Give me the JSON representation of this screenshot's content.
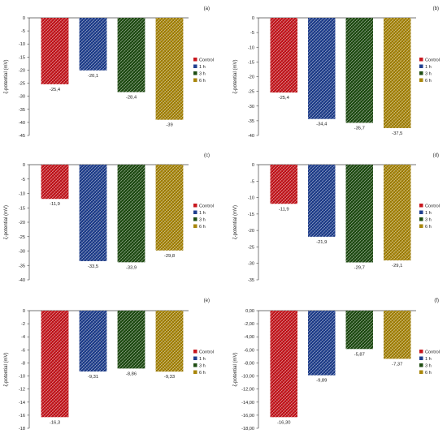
{
  "colors": {
    "Control": "#c8161d",
    "1 h": "#1f3f8f",
    "3 h": "#1e4d12",
    "6 h": "#a8860a"
  },
  "chart_data": [
    {
      "panel": "(a)",
      "type": "bar",
      "ylabel": "ζ-potential (mV)",
      "categories": [
        "Control",
        "1 h",
        "3 h",
        "6 h"
      ],
      "values": [
        -25.4,
        -20.1,
        -28.4,
        -39
      ],
      "value_labels": [
        "-25,4",
        "-20,1",
        "-28,4",
        "-39"
      ],
      "ylim": [
        -45,
        0
      ],
      "yticks": [
        0,
        -5,
        -10,
        -15,
        -20,
        -25,
        -30,
        -35,
        -40,
        -45
      ],
      "ytick_labels": [
        "0",
        "-5",
        "-10",
        "-15",
        "-20",
        "-25",
        "-30",
        "-35",
        "-40",
        "-45"
      ],
      "legend": [
        "Control",
        "1 h",
        "3 h",
        "6 h"
      ],
      "legend_position": "right"
    },
    {
      "panel": "(b)",
      "type": "bar",
      "ylabel": "ζ-potential (mV)",
      "categories": [
        "Control",
        "1 h",
        "3 h",
        "6 h"
      ],
      "values": [
        -25.4,
        -34.4,
        -35.7,
        -37.5
      ],
      "value_labels": [
        "-25,4",
        "-34,4",
        "-35,7",
        "-37,5"
      ],
      "ylim": [
        -40,
        0
      ],
      "yticks": [
        0,
        -5,
        -10,
        -15,
        -20,
        -25,
        -30,
        -35,
        -40
      ],
      "ytick_labels": [
        "0",
        "-5",
        "-10",
        "-15",
        "-20",
        "-25",
        "-30",
        "-35",
        "-40"
      ],
      "legend": [
        "Control",
        "1 h",
        "3 h",
        "6 h"
      ],
      "legend_position": "right"
    },
    {
      "panel": "(c)",
      "type": "bar",
      "ylabel": "ζ-potential (mV)",
      "categories": [
        "Control",
        "1 h",
        "3 h",
        "6 h"
      ],
      "values": [
        -11.9,
        -33.5,
        -33.9,
        -29.8
      ],
      "value_labels": [
        "-11,9",
        "-33,5",
        "-33,9",
        "-29,8"
      ],
      "ylim": [
        -40,
        0
      ],
      "yticks": [
        0,
        -5,
        -10,
        -15,
        -20,
        -25,
        -30,
        -35,
        -40
      ],
      "ytick_labels": [
        "0",
        "-5",
        "-10",
        "-15",
        "-20",
        "-25",
        "-30",
        "-35",
        "-40"
      ],
      "legend": [
        "Control",
        "1 h",
        "3 h",
        "6 h"
      ],
      "legend_position": "right"
    },
    {
      "panel": "(d)",
      "type": "bar",
      "ylabel": "ζ-potential (mV)",
      "categories": [
        "Control",
        "1 h",
        "3 h",
        "6 h"
      ],
      "values": [
        -11.9,
        -21.9,
        -29.7,
        -29.1
      ],
      "value_labels": [
        "-11,9",
        "-21,9",
        "-29,7",
        "-29,1"
      ],
      "ylim": [
        -35,
        0
      ],
      "yticks": [
        0,
        -5,
        -10,
        -15,
        -20,
        -25,
        -30,
        -35
      ],
      "ytick_labels": [
        "0",
        "-5",
        "-10",
        "-15",
        "-20",
        "-25",
        "-30",
        "-35"
      ],
      "legend": [
        "Control",
        "1 h",
        "3 h",
        "6 h"
      ],
      "legend_position": "right"
    },
    {
      "panel": "(e)",
      "type": "bar",
      "ylabel": "ζ-potential (mV)",
      "categories": [
        "Control",
        "1 h",
        "3 h",
        "6 h"
      ],
      "values": [
        -16.3,
        -9.31,
        -8.86,
        -9.33
      ],
      "value_labels": [
        "-16,3",
        "-9,31",
        "-8,86",
        "-9,33"
      ],
      "ylim": [
        -18,
        0
      ],
      "yticks": [
        0,
        -2,
        -4,
        -6,
        -8,
        -10,
        -12,
        -14,
        -16,
        -18
      ],
      "ytick_labels": [
        "0",
        "-2",
        "-4",
        "-6",
        "-8",
        "-10",
        "-12",
        "-14",
        "-16",
        "-18"
      ],
      "legend": [
        "Control",
        "1 h",
        "3 h",
        "6 h"
      ],
      "legend_position": "right"
    },
    {
      "panel": "(f)",
      "type": "bar",
      "ylabel": "ζ-potential (mV)",
      "categories": [
        "Control",
        "1 h",
        "3 h",
        "6 h"
      ],
      "values": [
        -16.3,
        -9.89,
        -5.87,
        -7.37
      ],
      "value_labels": [
        "-16,30",
        "-9,89",
        "-5,87",
        "-7,37"
      ],
      "ylim": [
        -18,
        0
      ],
      "yticks": [
        0,
        -2,
        -4,
        -6,
        -8,
        -10,
        -12,
        -14,
        -16,
        -18
      ],
      "ytick_labels": [
        "0,00",
        "-2,00",
        "-4,00",
        "-6,00",
        "-8,00",
        "-10,00",
        "-12,00",
        "-14,00",
        "-16,00",
        "-18,00"
      ],
      "legend": [
        "Control",
        "1 h",
        "3 h",
        "6 h"
      ],
      "legend_position": "right"
    }
  ]
}
